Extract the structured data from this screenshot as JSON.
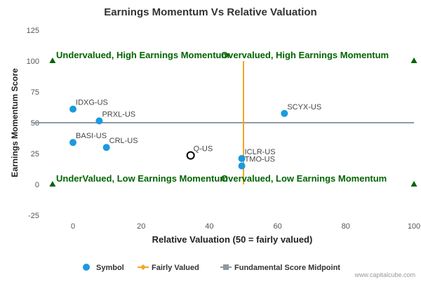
{
  "chart_data": {
    "type": "scatter",
    "title": "Earnings Momentum Vs Relative Valuation",
    "xlabel": "Relative Valuation (50 = fairly valued)",
    "ylabel": "Earnings Momentum Score",
    "xlim": [
      -7,
      100
    ],
    "ylim": [
      -25,
      125
    ],
    "x_ticks": [
      0,
      20,
      40,
      60,
      80,
      100
    ],
    "y_ticks": [
      -25,
      0,
      25,
      50,
      75,
      100,
      125
    ],
    "grid": false,
    "legend_position": "bottom-center",
    "points": [
      {
        "label": "IDXG-US",
        "x": 0,
        "y": 61
      },
      {
        "label": "PRXL-US",
        "x": 7.7,
        "y": 51.5
      },
      {
        "label": "BASI-US",
        "x": 0,
        "y": 34
      },
      {
        "label": "CRL-US",
        "x": 9.8,
        "y": 30
      },
      {
        "label": "Q-US",
        "x": 34.5,
        "y": 23.5,
        "highlight": true
      },
      {
        "label": "ICLR-US",
        "x": 49.5,
        "y": 21
      },
      {
        "label": "TMO-US",
        "x": 49.5,
        "y": 15
      },
      {
        "label": "SCYX-US",
        "x": 62,
        "y": 57.5
      }
    ],
    "fairly_valued_x": 50,
    "fairly_valued_y_range": [
      0,
      100
    ],
    "midpoint_y": 50,
    "quadrant_labels": [
      {
        "text": "Undervalued, High Earnings Momentum",
        "x": 0,
        "y": 100
      },
      {
        "text": "Overvalued, High Earnings Momentum",
        "x": 50,
        "y": 100
      },
      {
        "text": "UnderValued, Low Earnings Momentum",
        "x": 0,
        "y": 0
      },
      {
        "text": "Overvalued, Low Earnings Momentum",
        "x": 50,
        "y": 0
      }
    ],
    "corner_markers": [
      {
        "x": -6,
        "y": 100
      },
      {
        "x": 100,
        "y": 100
      },
      {
        "x": -6,
        "y": 0
      },
      {
        "x": 100,
        "y": 0
      }
    ],
    "legend": [
      {
        "name": "Symbol",
        "symbol": "circle"
      },
      {
        "name": "Fairly Valued",
        "symbol": "line-diamond"
      },
      {
        "name": "Fundamental Score Midpoint",
        "symbol": "line-square"
      }
    ],
    "credit": "www.capitalcube.com",
    "colors": {
      "point": "#1a9ae0",
      "highlight_stroke": "#000000",
      "fairly_valued": "#f5a623",
      "midpoint": "#8e9aa6",
      "quadrant_text": "#006400",
      "marker": "#006400",
      "axis_text": "#555555"
    }
  }
}
